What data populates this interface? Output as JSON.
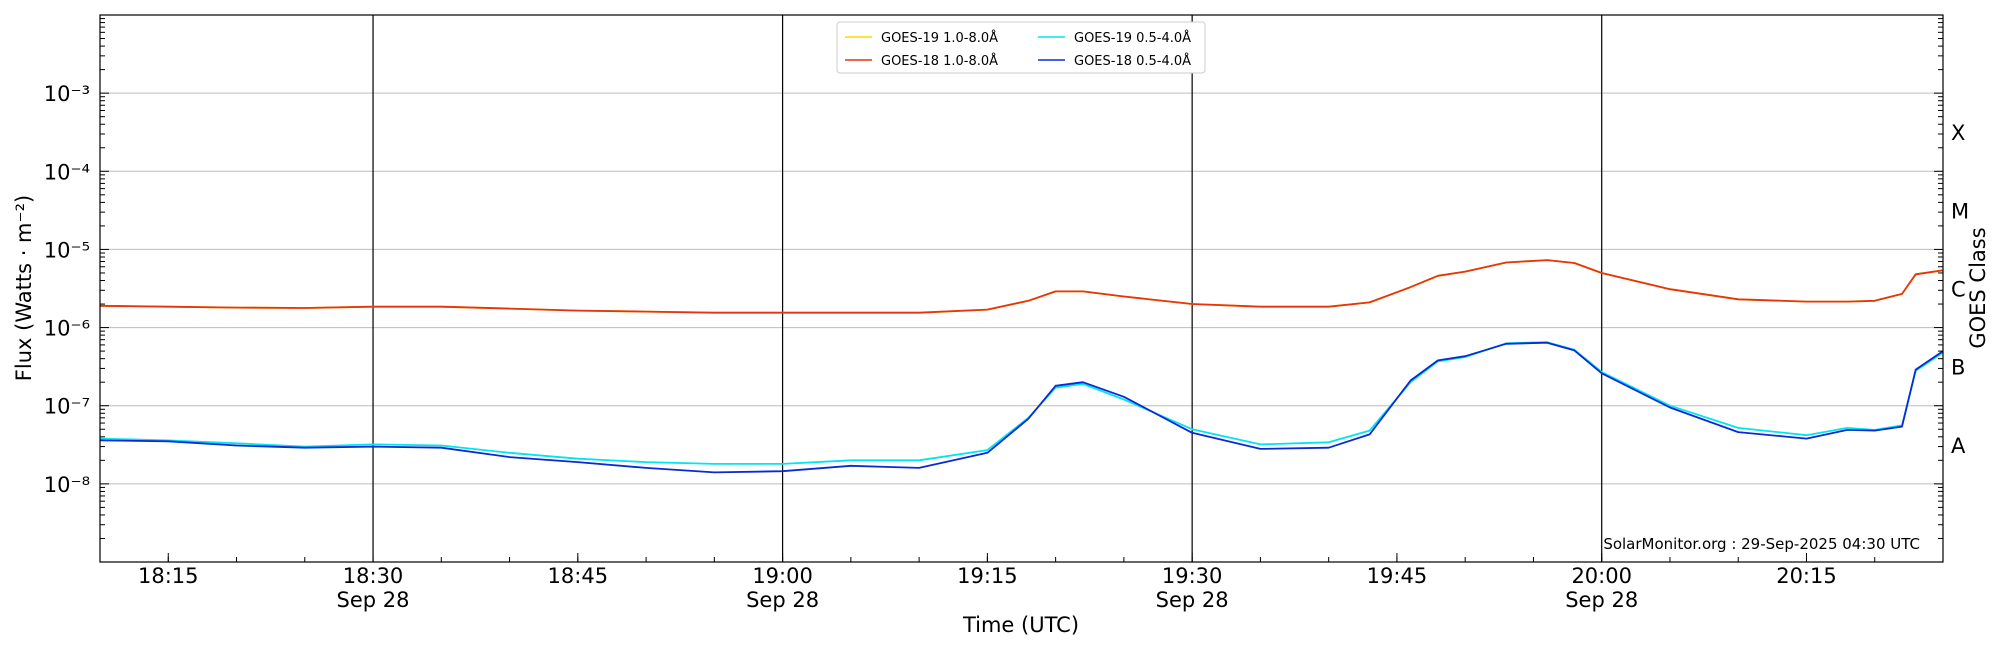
{
  "chart_data": {
    "type": "line",
    "title": "",
    "xlabel": "Time (UTC)",
    "ylabel": "Flux (Watts · m⁻²)",
    "y2label": "GOES Class",
    "yscale": "log",
    "ylim": [
      1e-09,
      0.01
    ],
    "xlim": [
      "2025-09-28 18:10",
      "2025-09-28 20:25"
    ],
    "grid": "horizontal at decades",
    "legend_position": "top-center",
    "credit": "SolarMonitor.org : 29-Sep-2025 04:30 UTC",
    "x_ticks": [
      {
        "t": "2025-09-28 18:15",
        "label": "18:15",
        "sub": ""
      },
      {
        "t": "2025-09-28 18:30",
        "label": "18:30",
        "sub": "Sep 28"
      },
      {
        "t": "2025-09-28 18:45",
        "label": "18:45",
        "sub": ""
      },
      {
        "t": "2025-09-28 19:00",
        "label": "19:00",
        "sub": "Sep 28"
      },
      {
        "t": "2025-09-28 19:15",
        "label": "19:15",
        "sub": ""
      },
      {
        "t": "2025-09-28 19:30",
        "label": "19:30",
        "sub": "Sep 28"
      },
      {
        "t": "2025-09-28 19:45",
        "label": "19:45",
        "sub": ""
      },
      {
        "t": "2025-09-28 20:00",
        "label": "20:00",
        "sub": "Sep 28"
      },
      {
        "t": "2025-09-28 20:15",
        "label": "20:15",
        "sub": ""
      }
    ],
    "vlines": [
      "2025-09-28 18:30",
      "2025-09-28 19:00",
      "2025-09-28 19:30",
      "2025-09-28 20:00"
    ],
    "y_ticks": [
      {
        "exp": -8,
        "label": "10⁻⁸"
      },
      {
        "exp": -7,
        "label": "10⁻⁷"
      },
      {
        "exp": -6,
        "label": "10⁻⁶"
      },
      {
        "exp": -5,
        "label": "10⁻⁵"
      },
      {
        "exp": -4,
        "label": "10⁻⁴"
      },
      {
        "exp": -3,
        "label": "10⁻³"
      }
    ],
    "classes": [
      {
        "label": "A",
        "exp": -7.5
      },
      {
        "label": "B",
        "exp": -6.5
      },
      {
        "label": "C",
        "exp": -5.5
      },
      {
        "label": "M",
        "exp": -4.5
      },
      {
        "label": "X",
        "exp": -3.5
      }
    ],
    "x": [
      "2025-09-28 18:10",
      "2025-09-28 18:15",
      "2025-09-28 18:20",
      "2025-09-28 18:25",
      "2025-09-28 18:30",
      "2025-09-28 18:35",
      "2025-09-28 18:40",
      "2025-09-28 18:45",
      "2025-09-28 18:50",
      "2025-09-28 18:55",
      "2025-09-28 19:00",
      "2025-09-28 19:05",
      "2025-09-28 19:10",
      "2025-09-28 19:15",
      "2025-09-28 19:18",
      "2025-09-28 19:20",
      "2025-09-28 19:22",
      "2025-09-28 19:25",
      "2025-09-28 19:30",
      "2025-09-28 19:35",
      "2025-09-28 19:40",
      "2025-09-28 19:43",
      "2025-09-28 19:46",
      "2025-09-28 19:48",
      "2025-09-28 19:50",
      "2025-09-28 19:53",
      "2025-09-28 19:56",
      "2025-09-28 19:58",
      "2025-09-28 20:00",
      "2025-09-28 20:05",
      "2025-09-28 20:10",
      "2025-09-28 20:15",
      "2025-09-28 20:18",
      "2025-09-28 20:20",
      "2025-09-28 20:22",
      "2025-09-28 20:23",
      "2025-09-28 20:25"
    ],
    "series": [
      {
        "name": "GOES-19 1.0-8.0Å",
        "color": "#ffd700",
        "values": [
          1.9e-06,
          1.85e-06,
          1.8e-06,
          1.78e-06,
          1.85e-06,
          1.85e-06,
          1.75e-06,
          1.65e-06,
          1.6e-06,
          1.55e-06,
          1.55e-06,
          1.55e-06,
          1.55e-06,
          1.7e-06,
          2.2e-06,
          2.9e-06,
          2.9e-06,
          2.5e-06,
          2e-06,
          1.85e-06,
          1.85e-06,
          2.1e-06,
          3.3e-06,
          4.6e-06,
          5.2e-06,
          6.8e-06,
          7.3e-06,
          6.7e-06,
          5e-06,
          3.1e-06,
          2.3e-06,
          2.15e-06,
          2.15e-06,
          2.2e-06,
          2.7e-06,
          4.8e-06,
          5.4e-06
        ]
      },
      {
        "name": "GOES-18 1.0-8.0Å",
        "color": "#e8340c",
        "values": [
          1.9e-06,
          1.85e-06,
          1.8e-06,
          1.78e-06,
          1.85e-06,
          1.85e-06,
          1.75e-06,
          1.65e-06,
          1.6e-06,
          1.55e-06,
          1.55e-06,
          1.55e-06,
          1.55e-06,
          1.7e-06,
          2.2e-06,
          2.9e-06,
          2.9e-06,
          2.5e-06,
          2e-06,
          1.85e-06,
          1.85e-06,
          2.1e-06,
          3.3e-06,
          4.6e-06,
          5.2e-06,
          6.8e-06,
          7.3e-06,
          6.7e-06,
          5e-06,
          3.1e-06,
          2.3e-06,
          2.15e-06,
          2.15e-06,
          2.2e-06,
          2.7e-06,
          4.8e-06,
          5.4e-06
        ]
      },
      {
        "name": "GOES-19 0.5-4.0Å",
        "color": "#00e5ee",
        "values": [
          3.8e-08,
          3.6e-08,
          3.3e-08,
          3e-08,
          3.2e-08,
          3.1e-08,
          2.5e-08,
          2.1e-08,
          1.9e-08,
          1.8e-08,
          1.8e-08,
          2e-08,
          2e-08,
          2.7e-08,
          7e-08,
          1.7e-07,
          1.9e-07,
          1.2e-07,
          5e-08,
          3.2e-08,
          3.4e-08,
          4.8e-08,
          2e-07,
          3.7e-07,
          4.2e-07,
          6.3e-07,
          6.5e-07,
          5.2e-07,
          2.7e-07,
          1e-07,
          5.2e-08,
          4.2e-08,
          5.2e-08,
          4.9e-08,
          5.6e-08,
          2.8e-07,
          4.8e-07
        ]
      },
      {
        "name": "GOES-18 0.5-4.0Å",
        "color": "#0a2ad6",
        "values": [
          3.6e-08,
          3.5e-08,
          3.1e-08,
          2.9e-08,
          3e-08,
          2.9e-08,
          2.2e-08,
          1.9e-08,
          1.6e-08,
          1.4e-08,
          1.45e-08,
          1.7e-08,
          1.6e-08,
          2.5e-08,
          6.8e-08,
          1.8e-07,
          2e-07,
          1.3e-07,
          4.5e-08,
          2.8e-08,
          2.9e-08,
          4.3e-08,
          2.1e-07,
          3.8e-07,
          4.3e-07,
          6.2e-07,
          6.4e-07,
          5.1e-07,
          2.6e-07,
          9.5e-08,
          4.6e-08,
          3.8e-08,
          4.9e-08,
          4.8e-08,
          5.4e-08,
          2.9e-07,
          5e-07
        ]
      }
    ]
  }
}
